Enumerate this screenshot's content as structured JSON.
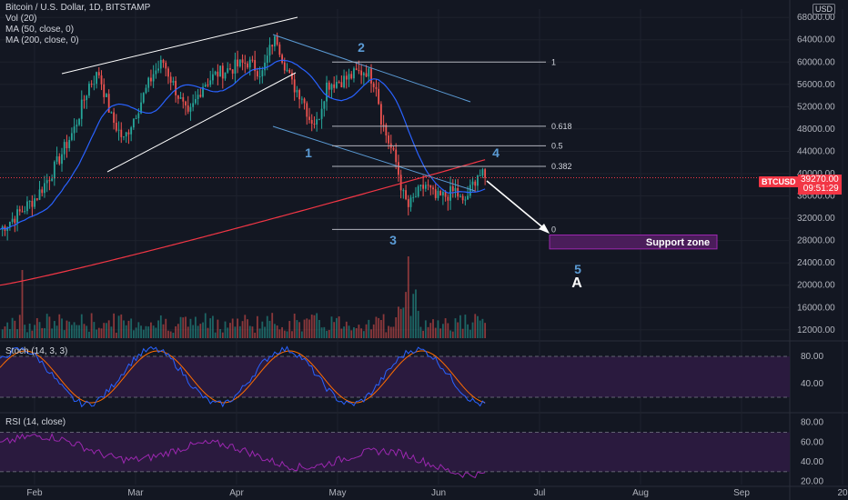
{
  "legend": {
    "symbol": "Bitcoin / U.S. Dollar, 1D, BITSTAMP",
    "vol": "Vol (20)",
    "ma50": "MA (50, close, 0)",
    "ma200": "MA (200, close, 0)"
  },
  "stoch_label": "Stoch (14, 3, 3)",
  "rsi_label": "RSI (14, close)",
  "currency": "USD",
  "symbol_tag": "BTCUSD",
  "last_price": "39270.00",
  "countdown": "09:51:29",
  "support_label": "Support zone",
  "wave_labels": [
    "1",
    "2",
    "3",
    "4",
    "5",
    "A"
  ],
  "colors": {
    "background": "#131722",
    "up": "#26a69a",
    "down": "#ef5350",
    "ma50": "#2962ff",
    "ma200": "#f23645",
    "wave": "#5b9bd5",
    "stoch_k": "#2962ff",
    "stoch_d": "#ff6d00",
    "rsi": "#9c27b0",
    "support_fill": "#4a1d5a"
  },
  "chart_data": [
    {
      "type": "candlestick",
      "title": "Bitcoin / U.S. Dollar, 1D, BITSTAMP",
      "x_ticks": [
        "Feb",
        "Mar",
        "Apr",
        "May",
        "Jun",
        "Jul",
        "Aug",
        "Sep",
        "20"
      ],
      "y_ticks": [
        "68000.00",
        "64000.00",
        "60000.00",
        "56000.00",
        "52000.00",
        "48000.00",
        "44000.00",
        "40000.00",
        "36000.00",
        "32000.00",
        "28000.00",
        "24000.00",
        "20000.00",
        "16000.00",
        "12000.00"
      ],
      "ylim": [
        10500,
        69500
      ],
      "price_path": [
        [
          0,
          30000
        ],
        [
          8,
          33000
        ],
        [
          15,
          36000
        ],
        [
          22,
          41000
        ],
        [
          30,
          48000
        ],
        [
          36,
          56000
        ],
        [
          40,
          58000
        ],
        [
          45,
          50000
        ],
        [
          50,
          46000
        ],
        [
          56,
          52000
        ],
        [
          62,
          58000
        ],
        [
          66,
          60000
        ],
        [
          70,
          56000
        ],
        [
          76,
          50000
        ],
        [
          82,
          56000
        ],
        [
          88,
          58000
        ],
        [
          94,
          59000
        ],
        [
          100,
          60000
        ],
        [
          106,
          58000
        ],
        [
          110,
          63500
        ],
        [
          112,
          64000
        ],
        [
          114,
          61000
        ],
        [
          118,
          56000
        ],
        [
          122,
          54000
        ],
        [
          125,
          50000
        ],
        [
          128,
          49000
        ],
        [
          132,
          56000
        ],
        [
          136,
          56500
        ],
        [
          140,
          57000
        ],
        [
          144,
          58000
        ],
        [
          148,
          58500
        ],
        [
          152,
          56000
        ],
        [
          154,
          50000
        ],
        [
          156,
          47000
        ],
        [
          160,
          42000
        ],
        [
          163,
          36000
        ],
        [
          165,
          34000
        ],
        [
          168,
          36000
        ],
        [
          172,
          38000
        ],
        [
          176,
          35500
        ],
        [
          180,
          36000
        ],
        [
          184,
          37000
        ],
        [
          187,
          34500
        ],
        [
          190,
          37000
        ],
        [
          193,
          40000
        ],
        [
          196,
          39270
        ]
      ],
      "days_total": 340,
      "fib_levels": [
        {
          "label": "1",
          "price": 60000
        },
        {
          "label": "0.618",
          "price": 48500
        },
        {
          "label": "0.5",
          "price": 45000
        },
        {
          "label": "0.382",
          "price": 41300
        },
        {
          "label": "0",
          "price": 30000
        }
      ],
      "support_zone": {
        "price_low": 26500,
        "price_high": 29000
      }
    },
    {
      "type": "line",
      "title": "Stoch (14, 3, 3)",
      "y_ticks": [
        "80.00",
        "40.00"
      ],
      "ylim": [
        0,
        100
      ],
      "upper_band": 80,
      "lower_band": 20
    },
    {
      "type": "line",
      "title": "RSI (14, close)",
      "y_ticks": [
        "80.00",
        "60.00",
        "40.00",
        "20.00"
      ],
      "ylim": [
        17,
        88
      ],
      "upper_band": 70,
      "lower_band": 30
    }
  ]
}
